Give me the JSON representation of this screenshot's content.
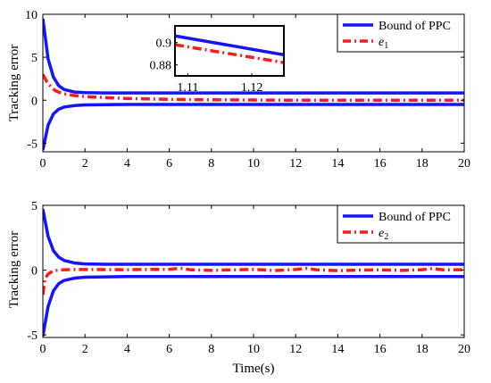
{
  "chart_data": [
    {
      "type": "line",
      "ylabel": "Tracking error",
      "xlabel": "",
      "xlim": [
        0,
        20
      ],
      "ylim": [
        -6,
        10
      ],
      "xticks": [
        0,
        2,
        4,
        6,
        8,
        10,
        12,
        14,
        16,
        18,
        20
      ],
      "yticks": [
        -5,
        0,
        5,
        10
      ],
      "legend_position": "top-right",
      "legend": [
        {
          "label": "Bound of PPC",
          "style": "solid",
          "color": "#1414ff"
        },
        {
          "label": "e",
          "sub": "1",
          "style": "dashdot",
          "color": "#ff1a1a"
        }
      ],
      "series": [
        {
          "name": "Bound of PPC",
          "color": "#1414ff",
          "style": "solid",
          "x": [
            0,
            0.25,
            0.5,
            0.75,
            1,
            1.5,
            2,
            3,
            4,
            6,
            8,
            10,
            12,
            14,
            16,
            18,
            20
          ],
          "y": [
            9.5,
            4.8,
            2.7,
            1.7,
            1.25,
            0.95,
            0.88,
            0.85,
            0.85,
            0.85,
            0.85,
            0.85,
            0.85,
            0.85,
            0.85,
            0.85,
            0.85
          ]
        },
        {
          "name": "",
          "color": "#1414ff",
          "style": "solid",
          "x": [
            0,
            0.25,
            0.5,
            0.75,
            1,
            1.5,
            2,
            3,
            4,
            6,
            8,
            10,
            12,
            14,
            16,
            18,
            20
          ],
          "y": [
            -5.8,
            -2.9,
            -1.6,
            -1.05,
            -0.8,
            -0.62,
            -0.55,
            -0.52,
            -0.5,
            -0.5,
            -0.5,
            -0.5,
            -0.5,
            -0.5,
            -0.5,
            -0.5,
            -0.5
          ]
        },
        {
          "name": "e1",
          "color": "#ff1a1a",
          "style": "dashdot",
          "x": [
            0,
            0.2,
            0.4,
            0.6,
            0.8,
            1,
            1.5,
            2,
            3,
            4,
            6,
            8,
            10,
            12,
            14,
            16,
            18,
            20
          ],
          "y": [
            3,
            2.1,
            1.5,
            1.1,
            0.9,
            0.75,
            0.55,
            0.42,
            0.3,
            0.2,
            0.1,
            0.05,
            0.02,
            0,
            0,
            0,
            0,
            0
          ]
        }
      ],
      "inset": {
        "xlim": [
          1.108,
          1.125
        ],
        "ylim": [
          0.87,
          0.915
        ],
        "xticks": [
          1.11,
          1.12
        ],
        "yticks": [
          0.88,
          0.9
        ],
        "xtick_labels": [
          "1.11",
          "1.12"
        ],
        "ytick_labels": [
          "0.88",
          "0.9"
        ],
        "series": [
          {
            "name": "Bound of PPC",
            "color": "#1414ff",
            "style": "solid",
            "x": [
              1.108,
              1.125
            ],
            "y": [
              0.906,
              0.889
            ]
          },
          {
            "name": "e1",
            "color": "#ff1a1a",
            "style": "dashdot",
            "x": [
              1.108,
              1.125
            ],
            "y": [
              0.898,
              0.882
            ]
          }
        ]
      }
    },
    {
      "type": "line",
      "ylabel": "Tracking error",
      "xlabel": "Time(s)",
      "xlim": [
        0,
        20
      ],
      "ylim": [
        -5.2,
        5
      ],
      "xticks": [
        0,
        2,
        4,
        6,
        8,
        10,
        12,
        14,
        16,
        18,
        20
      ],
      "yticks": [
        -5,
        0,
        5
      ],
      "legend_position": "top-right",
      "legend": [
        {
          "label": "Bound of PPC",
          "style": "solid",
          "color": "#1414ff"
        },
        {
          "label": "e",
          "sub": "2",
          "style": "dashdot",
          "color": "#ff1a1a"
        }
      ],
      "series": [
        {
          "name": "Bound of PPC",
          "color": "#1414ff",
          "style": "solid",
          "x": [
            0,
            0.25,
            0.5,
            0.75,
            1,
            1.5,
            2,
            3,
            4,
            6,
            8,
            10,
            12,
            14,
            16,
            18,
            20
          ],
          "y": [
            4.7,
            2.6,
            1.5,
            1.0,
            0.75,
            0.55,
            0.48,
            0.45,
            0.45,
            0.45,
            0.45,
            0.45,
            0.45,
            0.45,
            0.45,
            0.45,
            0.45
          ]
        },
        {
          "name": "",
          "color": "#1414ff",
          "style": "solid",
          "x": [
            0,
            0.25,
            0.5,
            0.75,
            1,
            1.5,
            2,
            3,
            4,
            6,
            8,
            10,
            12,
            14,
            16,
            18,
            20
          ],
          "y": [
            -5.1,
            -2.8,
            -1.6,
            -1.05,
            -0.8,
            -0.62,
            -0.55,
            -0.52,
            -0.5,
            -0.5,
            -0.5,
            -0.5,
            -0.5,
            -0.5,
            -0.5,
            -0.5,
            -0.5
          ]
        },
        {
          "name": "e2",
          "color": "#ff1a1a",
          "style": "dashdot",
          "x": [
            0,
            0.1,
            0.25,
            0.5,
            0.75,
            1,
            1.5,
            2,
            3,
            4,
            5,
            6,
            6.5,
            7,
            8,
            9,
            10,
            11,
            12,
            12.5,
            13,
            14,
            15,
            16,
            17,
            18,
            18.5,
            19,
            20
          ],
          "y": [
            -1.9,
            -0.7,
            -0.3,
            -0.05,
            0,
            0.03,
            0.05,
            0.05,
            0.04,
            0.03,
            0.05,
            0.06,
            0.14,
            0.03,
            -0.02,
            0.02,
            0.05,
            -0.03,
            0.05,
            0.13,
            0.02,
            -0.04,
            0,
            0.02,
            -0.02,
            0.03,
            0.12,
            0.02,
            0.03
          ]
        }
      ]
    }
  ]
}
